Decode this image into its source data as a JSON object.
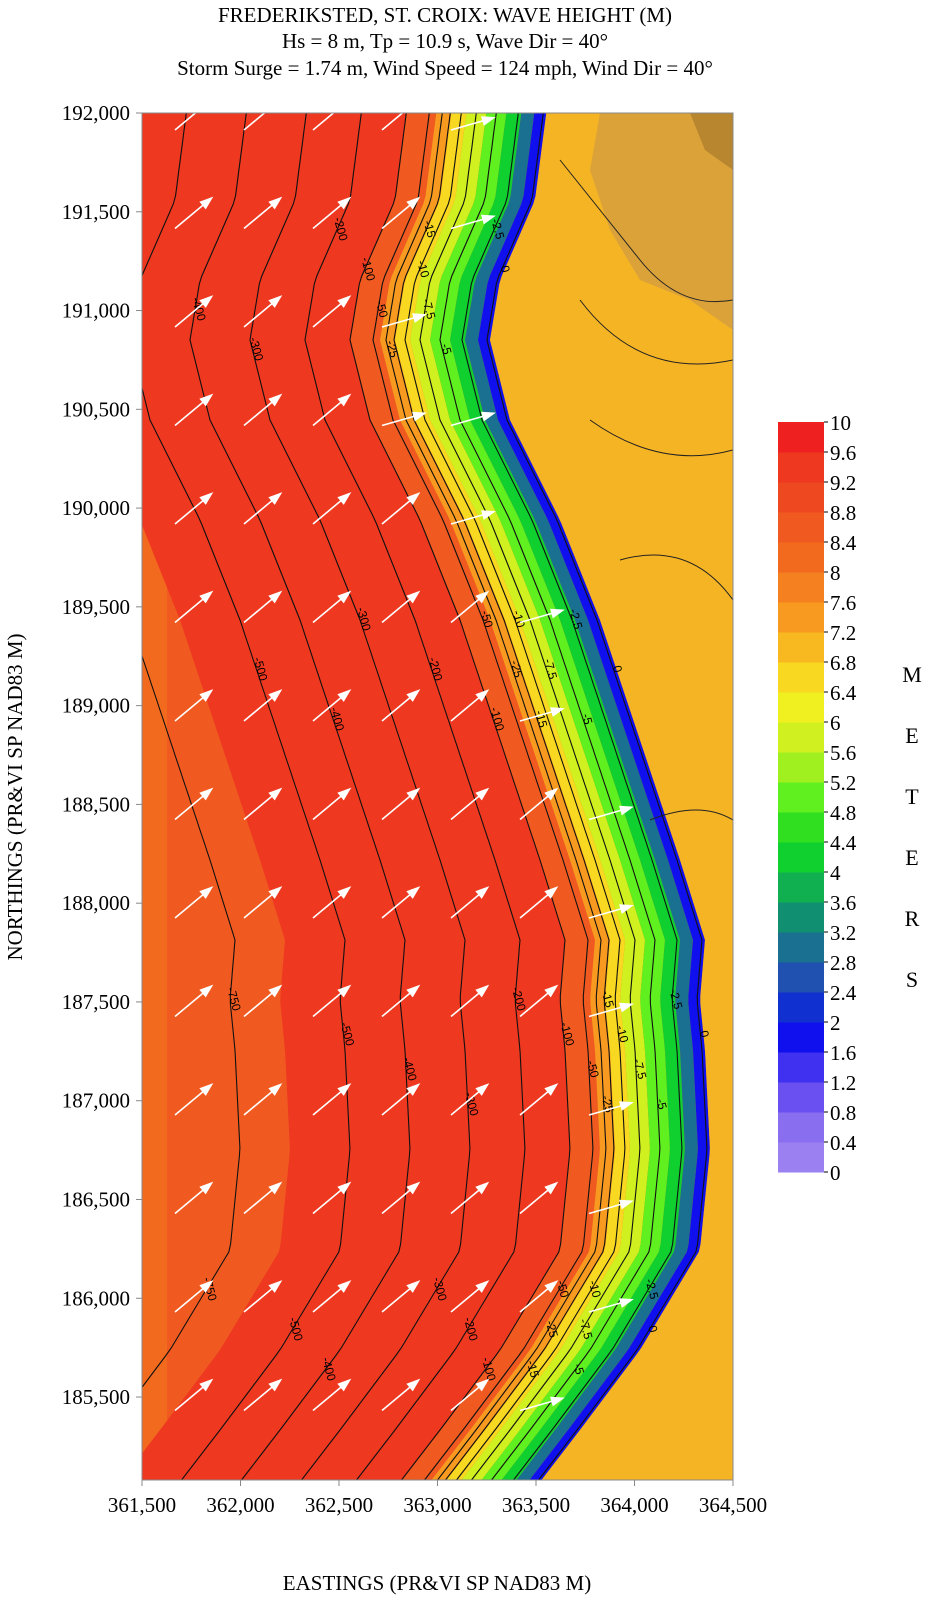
{
  "chart_data": {
    "type": "contour",
    "title": "FREDERIKSTED, ST. CROIX: WAVE HEIGHT (M)",
    "subtitle": "Hs = 8 m, Tp = 10.9 s, Wave Dir = 40°",
    "subtitle2": "Storm Surge = 1.74 m, Wind Speed = 124 mph, Wind Dir = 40°",
    "x_label": "EASTINGS (PR&VI SP NAD83 M)",
    "y_label": "NORTHINGS (PR&VI SP NAD83 M)",
    "xlim": [
      361500,
      364500
    ],
    "xticks": [
      {
        "value": 361500,
        "label": "361,500"
      },
      {
        "value": 362000,
        "label": "362,000"
      },
      {
        "value": 362500,
        "label": "362,500"
      },
      {
        "value": 363000,
        "label": "363,000"
      },
      {
        "value": 363500,
        "label": "363,500"
      },
      {
        "value": 364000,
        "label": "364,000"
      },
      {
        "value": 364500,
        "label": "364,500"
      }
    ],
    "ylim": [
      185080,
      192000
    ],
    "yticks": [
      {
        "value": 185500,
        "label": "185,500"
      },
      {
        "value": 186000,
        "label": "186,000"
      },
      {
        "value": 186500,
        "label": "186,500"
      },
      {
        "value": 187000,
        "label": "187,000"
      },
      {
        "value": 187500,
        "label": "187,500"
      },
      {
        "value": 188000,
        "label": "188,000"
      },
      {
        "value": 188500,
        "label": "188,500"
      },
      {
        "value": 189000,
        "label": "189,000"
      },
      {
        "value": 189500,
        "label": "189,500"
      },
      {
        "value": 190000,
        "label": "190,000"
      },
      {
        "value": 190500,
        "label": "190,500"
      },
      {
        "value": 191000,
        "label": "191,000"
      },
      {
        "value": 191500,
        "label": "191,500"
      },
      {
        "value": 192000,
        "label": "192,000"
      }
    ],
    "contour_levels": [
      -750,
      -500,
      -400,
      -300,
      -200,
      -100,
      -50,
      -25,
      -15,
      -10,
      -7.5,
      -5,
      -2.5,
      0
    ],
    "colorbar": {
      "label": "METERS",
      "ticks": [
        0,
        0.4,
        0.8,
        1.2,
        1.6,
        2,
        2.4,
        2.8,
        3.2,
        3.6,
        4,
        4.4,
        4.8,
        5.2,
        5.6,
        6,
        6.4,
        6.8,
        7.2,
        7.6,
        8,
        8.4,
        8.8,
        9.2,
        9.6,
        10
      ],
      "colors": [
        "#9a80f0",
        "#8a6ef0",
        "#6a50f0",
        "#4030f0",
        "#1010ee",
        "#1030d0",
        "#2050b0",
        "#1a7090",
        "#109070",
        "#10b050",
        "#10d030",
        "#30e020",
        "#60f020",
        "#a0f020",
        "#d0f020",
        "#f0f020",
        "#f8d820",
        "#f8b820",
        "#f89a20",
        "#f58020",
        "#f26a1e",
        "#f05a20",
        "#ee4820",
        "#ee3820",
        "#ee2020"
      ]
    }
  }
}
